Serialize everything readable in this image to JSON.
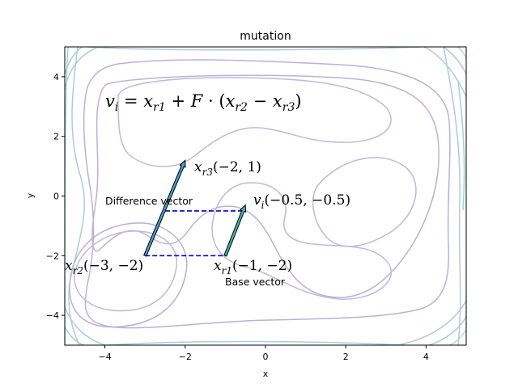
{
  "chart_data": {
    "type": "line",
    "title": "mutation",
    "xlabel": "x",
    "ylabel": "y",
    "xlim": [
      -5,
      5
    ],
    "ylim": [
      -5,
      5
    ],
    "xticks": [
      -4,
      -2,
      0,
      2,
      4
    ],
    "yticks": [
      -4,
      -2,
      0,
      2,
      4
    ],
    "grid": false,
    "background": "contour lines of a two-basin objective function",
    "formula": "v_i = x_r1 + F · (x_r2 − x_r3)",
    "points": [
      {
        "name": "x_r1",
        "label": "x_r1(−1, −2)",
        "x": -1,
        "y": -2
      },
      {
        "name": "x_r2",
        "label": "x_r2(−3, −2)",
        "x": -3,
        "y": -2
      },
      {
        "name": "x_r3",
        "label": "x_r3(−2, 1)",
        "x": -2,
        "y": 1
      },
      {
        "name": "v_i",
        "label": "v_i(−0.5, −0.5)",
        "x": -0.5,
        "y": -0.5
      }
    ],
    "arrows": [
      {
        "from": [
          -3,
          -2
        ],
        "to": [
          -2,
          1.2
        ],
        "color": "#4a9fd0"
      },
      {
        "from": [
          -1,
          -2
        ],
        "to": [
          -0.5,
          -0.3
        ],
        "color": "#3fb6a8"
      }
    ],
    "dashed_lines": [
      {
        "from": [
          -3,
          -2
        ],
        "to": [
          -1,
          -2
        ],
        "color": "#0000cc"
      },
      {
        "from": [
          -2.5,
          -0.5
        ],
        "to": [
          -0.5,
          -0.5
        ],
        "color": "#0000cc"
      }
    ],
    "annotations": [
      {
        "text": "Difference vector",
        "x": -4,
        "y": -0.2
      },
      {
        "text": "Base vector",
        "x": -1,
        "y": -2.8
      }
    ]
  }
}
